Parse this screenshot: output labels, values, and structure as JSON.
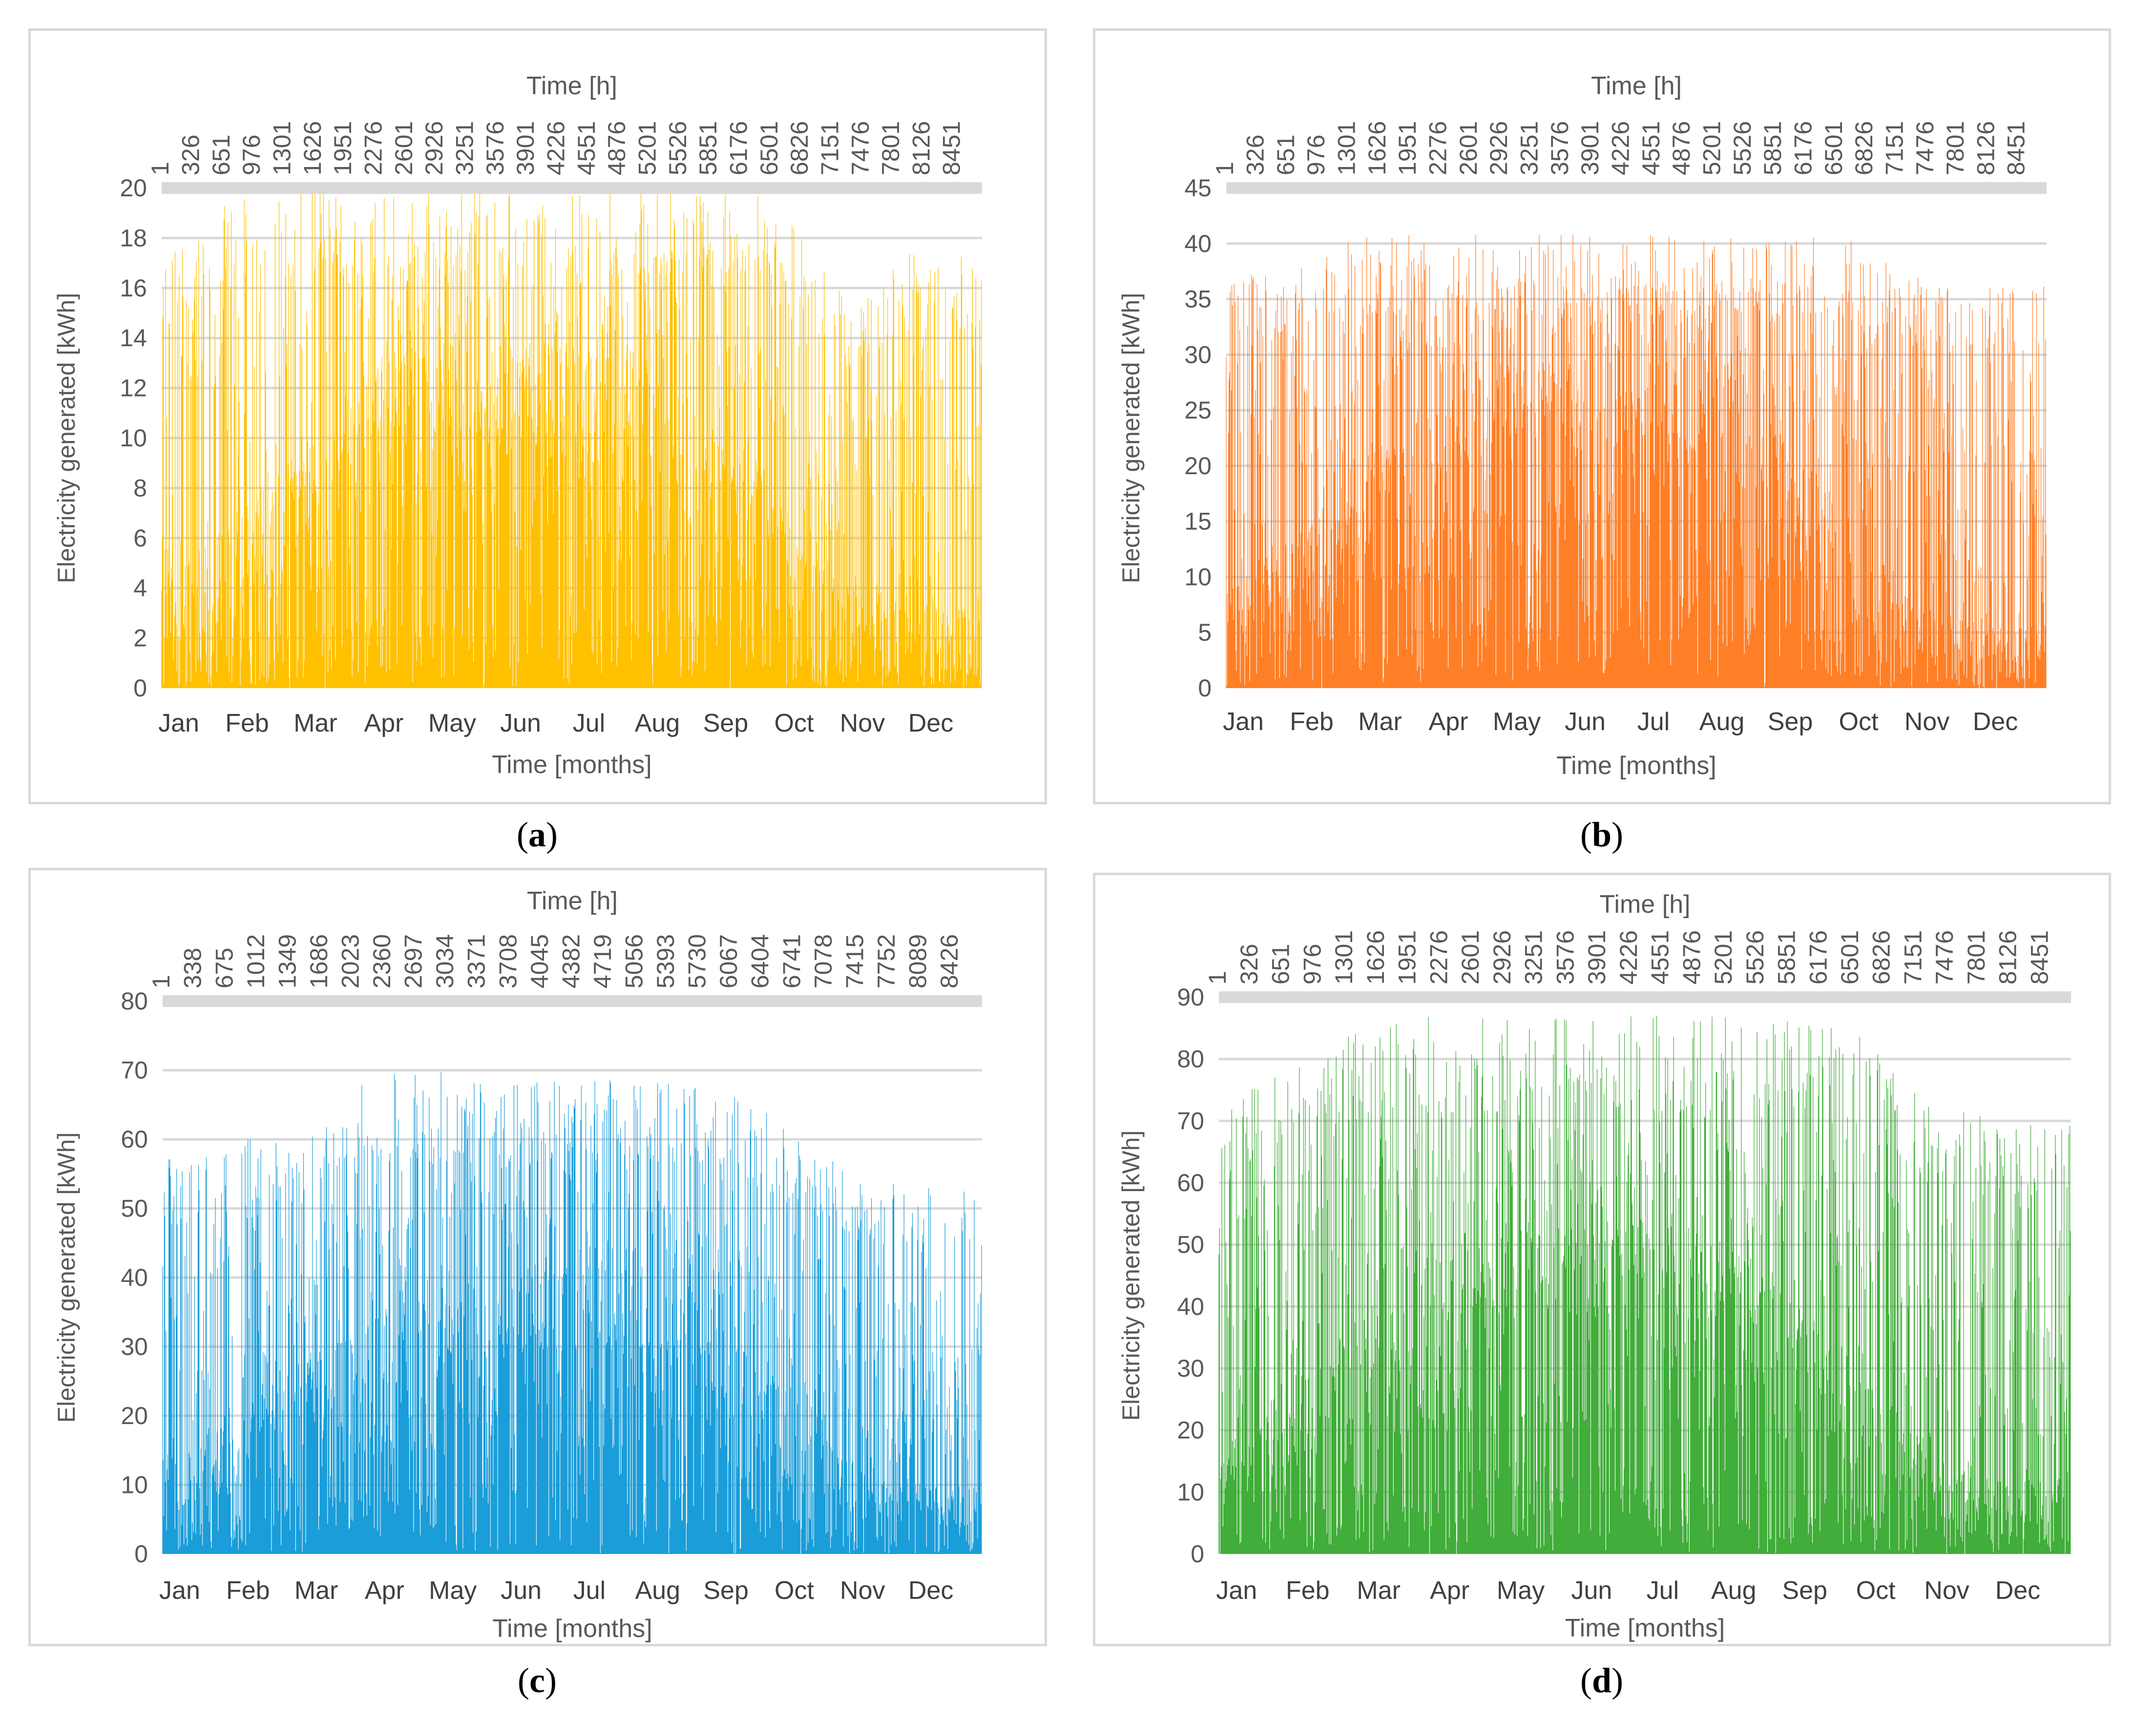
{
  "figure_labels": [
    "a",
    "b",
    "c",
    "d"
  ],
  "chart_data": [
    {
      "type": "area",
      "label": "a",
      "color": "#FFC000",
      "xlabel_top": "Time [h]",
      "xlabel_bottom": "Time [months]",
      "ylabel": "Electricity generated [kWh]",
      "ylim": [
        0,
        20
      ],
      "yticks": [
        0,
        2,
        4,
        6,
        8,
        10,
        12,
        14,
        16,
        18,
        20
      ],
      "hour_ticks": [
        "1",
        "326",
        "651",
        "976",
        "1301",
        "1626",
        "1951",
        "2276",
        "2601",
        "2926",
        "3251",
        "3576",
        "3901",
        "4226",
        "4551",
        "4876",
        "5201",
        "5526",
        "5851",
        "6176",
        "6501",
        "6826",
        "7151",
        "7476",
        "7801",
        "8126",
        "8451"
      ],
      "months": [
        "Jan",
        "Feb",
        "Mar",
        "Apr",
        "May",
        "Jun",
        "Jul",
        "Aug",
        "Sep",
        "Oct",
        "Nov",
        "Dec"
      ],
      "hours": 8760,
      "monthly_peak": [
        17.5,
        19.5,
        20,
        20,
        20,
        20,
        20,
        20,
        20,
        20,
        15.5,
        17.5
      ],
      "monthly_typical": [
        3,
        5,
        7,
        9,
        10,
        10,
        10,
        10,
        8,
        6,
        3,
        2.5
      ]
    },
    {
      "type": "area",
      "label": "b",
      "color": "#FF7F27",
      "xlabel_top": "Time [h]",
      "xlabel_bottom": "Time [months]",
      "ylabel": "Electricity generated [kWh]",
      "ylim": [
        0,
        45
      ],
      "yticks": [
        0,
        5,
        10,
        15,
        20,
        25,
        30,
        35,
        40,
        45
      ],
      "hour_ticks": [
        "1",
        "326",
        "651",
        "976",
        "1301",
        "1626",
        "1951",
        "2276",
        "2601",
        "2926",
        "3251",
        "3576",
        "3901",
        "4226",
        "4551",
        "4876",
        "5201",
        "5526",
        "5851",
        "6176",
        "6501",
        "6826",
        "7151",
        "7476",
        "7801",
        "8126",
        "8451"
      ],
      "months": [
        "Jan",
        "Feb",
        "Mar",
        "Apr",
        "May",
        "Jun",
        "Jul",
        "Aug",
        "Sep",
        "Oct",
        "Nov",
        "Dec"
      ],
      "hours": 8760,
      "monthly_peak": [
        37,
        38.5,
        40.8,
        40.8,
        40.8,
        40.8,
        40.8,
        40.8,
        40.8,
        40.8,
        37,
        36.5
      ],
      "monthly_typical": [
        6,
        10,
        15,
        19,
        21,
        21,
        22,
        21,
        17,
        12,
        6,
        4
      ]
    },
    {
      "type": "area",
      "label": "c",
      "color": "#1B9DD9",
      "xlabel_top": "Time [h]",
      "xlabel_bottom": "Time [months]",
      "ylabel": "Electricity generated [kWh]",
      "ylim": [
        0,
        80
      ],
      "yticks": [
        0,
        10,
        20,
        30,
        40,
        50,
        60,
        70,
        80
      ],
      "hour_ticks": [
        "1",
        "338",
        "675",
        "1012",
        "1349",
        "1686",
        "2023",
        "2360",
        "2697",
        "3034",
        "3371",
        "3708",
        "4045",
        "4382",
        "4719",
        "5056",
        "5393",
        "5730",
        "6067",
        "6404",
        "6741",
        "7078",
        "7415",
        "7752",
        "8089",
        "8426"
      ],
      "months": [
        "Jan",
        "Feb",
        "Mar",
        "Apr",
        "May",
        "Jun",
        "Jul",
        "Aug",
        "Sep",
        "Oct",
        "Nov",
        "Dec"
      ],
      "hours": 8760,
      "monthly_peak": [
        57,
        59,
        64,
        70,
        70,
        68,
        70,
        69,
        69,
        63,
        56,
        53
      ],
      "monthly_typical": [
        10,
        14,
        20,
        25,
        27,
        28,
        30,
        29,
        25,
        18,
        10,
        7
      ]
    },
    {
      "type": "area",
      "label": "d",
      "color": "#41AD3A",
      "xlabel_top": "Time [h]",
      "xlabel_bottom": "Time [months]",
      "ylabel": "Electricity generated [kWh]",
      "ylim": [
        0,
        90
      ],
      "yticks": [
        0,
        10,
        20,
        30,
        40,
        50,
        60,
        70,
        80,
        90
      ],
      "hour_ticks": [
        "1",
        "326",
        "651",
        "976",
        "1301",
        "1626",
        "1951",
        "2276",
        "2601",
        "2926",
        "3251",
        "3576",
        "3901",
        "4226",
        "4551",
        "4876",
        "5201",
        "5526",
        "5851",
        "6176",
        "6501",
        "6826",
        "7151",
        "7476",
        "7801",
        "8126",
        "8451"
      ],
      "months": [
        "Jan",
        "Feb",
        "Mar",
        "Apr",
        "May",
        "Jun",
        "Jul",
        "Aug",
        "Sep",
        "Oct",
        "Nov",
        "Dec"
      ],
      "hours": 8760,
      "monthly_peak": [
        75,
        78,
        85,
        87,
        87,
        87,
        87,
        87,
        87,
        84,
        73,
        70
      ],
      "monthly_typical": [
        12,
        18,
        28,
        34,
        37,
        38,
        39,
        37,
        31,
        22,
        12,
        9
      ]
    }
  ]
}
